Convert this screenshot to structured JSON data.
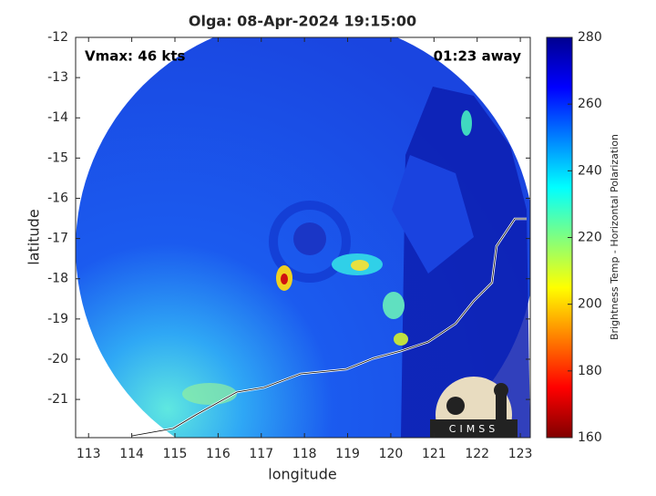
{
  "chart_data": {
    "type": "image",
    "title": "Olga: 08-Apr-2024 19:15:00",
    "x_label": "longitude",
    "y_label": "latitude",
    "xlim": [
      112.7,
      123.23
    ],
    "ylim": [
      -21.95,
      -12
    ],
    "xticks": [
      113,
      114,
      115,
      116,
      117,
      118,
      119,
      120,
      121,
      122,
      123
    ],
    "yticks": [
      -12,
      -13,
      -14,
      -15,
      -16,
      -17,
      -18,
      -19,
      -20,
      -21
    ],
    "annotations": [
      "Vmax: 46 kts",
      "01:23 away"
    ],
    "logo": "CIMSS",
    "colorbar": {
      "label": "Brightness Temp - Horizontal Polarization",
      "colormap": "jet",
      "lim": [
        160,
        280
      ],
      "ticks": [
        160,
        180,
        200,
        220,
        240,
        260,
        280
      ]
    }
  }
}
